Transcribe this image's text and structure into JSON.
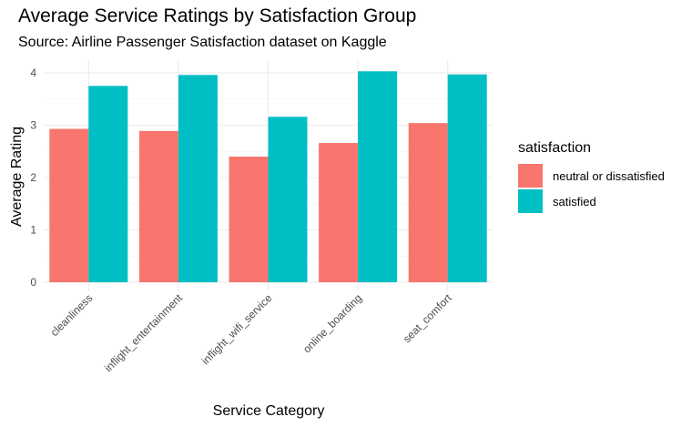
{
  "chart_data": {
    "type": "bar",
    "title": "Average Service Ratings by Satisfaction Group",
    "subtitle": "Source: Airline Passenger Satisfaction dataset on Kaggle",
    "xlabel": "Service Category",
    "ylabel": "Average Rating",
    "categories": [
      "cleanliness",
      "inflight_entertainment",
      "inflight_wifi_service",
      "online_boarding",
      "seat_comfort"
    ],
    "series": [
      {
        "name": "neutral or dissatisfied",
        "color": "#F8766D",
        "values": [
          2.93,
          2.89,
          2.4,
          2.66,
          3.04
        ]
      },
      {
        "name": "satisfied",
        "color": "#00BFC4",
        "values": [
          3.75,
          3.96,
          3.16,
          4.03,
          3.97
        ]
      }
    ],
    "ylim": [
      0,
      4.2
    ],
    "yticks": [
      0,
      1,
      2,
      3,
      4
    ],
    "grid": true,
    "legend": {
      "title": "satisfaction",
      "position": "right"
    }
  }
}
